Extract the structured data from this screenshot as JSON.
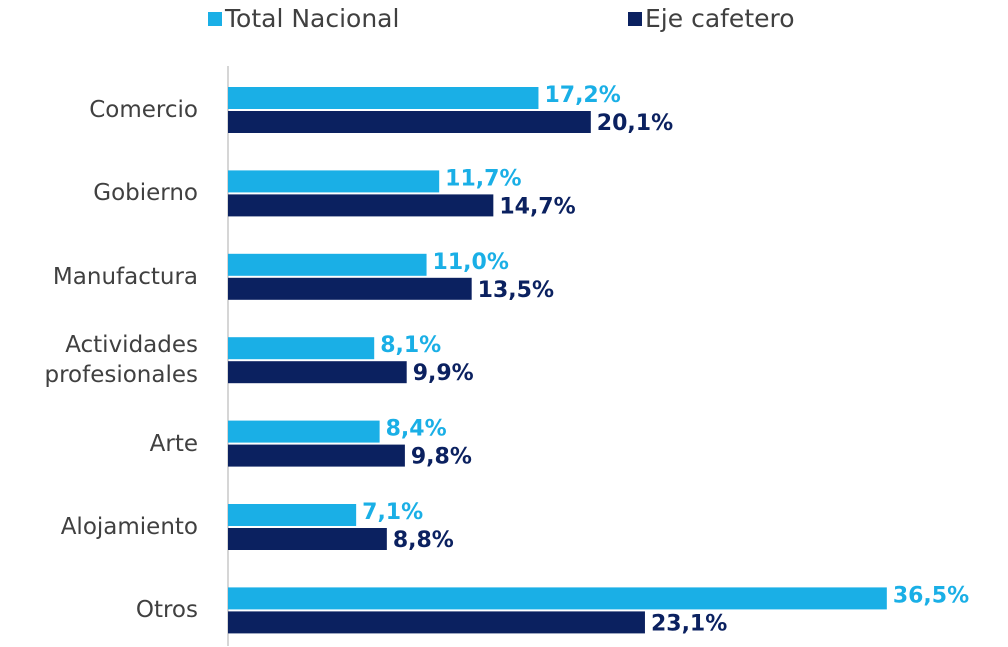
{
  "chart_data": {
    "type": "bar",
    "orientation": "horizontal",
    "categories": [
      "Comercio",
      "Gobierno",
      "Manufactura",
      "Actividades profesionales",
      "Arte",
      "Alojamiento",
      "Otros"
    ],
    "series": [
      {
        "name": "Total Nacional",
        "color": "#1aafe6",
        "values": [
          17.2,
          11.7,
          11.0,
          8.1,
          8.4,
          7.1,
          36.5
        ],
        "value_labels": [
          "17,2%",
          "11,7%",
          "11,0%",
          "8,1%",
          "8,4%",
          "7,1%",
          "36,5%"
        ]
      },
      {
        "name": "Eje cafetero",
        "color": "#0b2160",
        "values": [
          20.1,
          14.7,
          13.5,
          9.9,
          9.8,
          8.8,
          23.1
        ],
        "value_labels": [
          "20,1%",
          "14,7%",
          "13,5%",
          "9,9%",
          "9,8%",
          "8,8%",
          "23,1%"
        ]
      }
    ]
  }
}
